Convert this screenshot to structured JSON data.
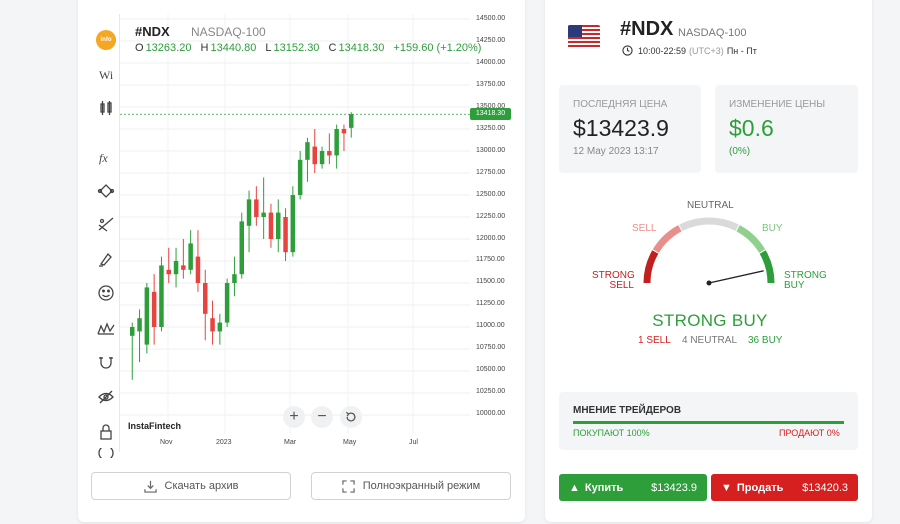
{
  "chart": {
    "symbol": "#NDX",
    "name": "NASDAQ-100",
    "ohlc": {
      "o_label": "O",
      "o": "13263.20",
      "h_label": "H",
      "h": "13440.80",
      "l_label": "L",
      "l": "13152.30",
      "c_label": "C",
      "c": "13418.30",
      "change": "+159.60 (+1.20%)"
    },
    "current_price_tag": "13418.30",
    "brand": "InstaFintech",
    "zoom_in": "+",
    "zoom_out": "−",
    "y_ticks": [
      "14500.00",
      "14250.00",
      "14000.00",
      "13750.00",
      "13500.00",
      "13250.00",
      "13000.00",
      "12750.00",
      "12500.00",
      "12250.00",
      "12000.00",
      "11750.00",
      "11500.00",
      "11250.00",
      "11000.00",
      "10750.00",
      "10500.00",
      "10250.00",
      "10000.00"
    ],
    "x_ticks": [
      "Nov",
      "2023",
      "Mar",
      "May",
      "Jul"
    ],
    "tools": [
      "logo",
      "wi-icon",
      "candles-icon",
      "fx-icon",
      "shape-icon",
      "trend-lines-icon",
      "brush-icon",
      "emoji-icon",
      "pattern-icon",
      "magnet-icon",
      "hide-icon",
      "lock-icon",
      "clock-icon"
    ],
    "logo_text": "info",
    "colors": {
      "up": "#2e9e3b",
      "down": "#e8433f"
    }
  },
  "chart_data": {
    "type": "candlestick",
    "title": "#NDX NASDAQ-100",
    "ylim": [
      10000,
      14500
    ],
    "candles": [
      {
        "o": 10900,
        "h": 11050,
        "l": 10400,
        "c": 11000
      },
      {
        "o": 10950,
        "h": 11200,
        "l": 10600,
        "c": 11100
      },
      {
        "o": 10800,
        "h": 11500,
        "l": 10700,
        "c": 11450
      },
      {
        "o": 11400,
        "h": 11600,
        "l": 10800,
        "c": 11000
      },
      {
        "o": 11000,
        "h": 11800,
        "l": 10950,
        "c": 11700
      },
      {
        "o": 11650,
        "h": 11900,
        "l": 11500,
        "c": 11600
      },
      {
        "o": 11600,
        "h": 11900,
        "l": 11450,
        "c": 11750
      },
      {
        "o": 11700,
        "h": 12000,
        "l": 11550,
        "c": 11650
      },
      {
        "o": 11650,
        "h": 12100,
        "l": 11600,
        "c": 11950
      },
      {
        "o": 11800,
        "h": 12100,
        "l": 11400,
        "c": 11500
      },
      {
        "o": 11500,
        "h": 11650,
        "l": 10850,
        "c": 11150
      },
      {
        "o": 11100,
        "h": 11300,
        "l": 10800,
        "c": 10950
      },
      {
        "o": 10950,
        "h": 11150,
        "l": 10800,
        "c": 11050
      },
      {
        "o": 11050,
        "h": 11550,
        "l": 11000,
        "c": 11500
      },
      {
        "o": 11500,
        "h": 11800,
        "l": 11350,
        "c": 11600
      },
      {
        "o": 11600,
        "h": 12300,
        "l": 11550,
        "c": 12200
      },
      {
        "o": 12150,
        "h": 12550,
        "l": 11850,
        "c": 12450
      },
      {
        "o": 12450,
        "h": 12600,
        "l": 12150,
        "c": 12250
      },
      {
        "o": 12250,
        "h": 12700,
        "l": 12000,
        "c": 12300
      },
      {
        "o": 12300,
        "h": 12400,
        "l": 11900,
        "c": 12000
      },
      {
        "o": 12000,
        "h": 12450,
        "l": 11850,
        "c": 12300
      },
      {
        "o": 12250,
        "h": 12350,
        "l": 11750,
        "c": 11850
      },
      {
        "o": 11850,
        "h": 12600,
        "l": 11800,
        "c": 12500
      },
      {
        "o": 12500,
        "h": 13000,
        "l": 12450,
        "c": 12900
      },
      {
        "o": 12900,
        "h": 13150,
        "l": 12650,
        "c": 13100
      },
      {
        "o": 13050,
        "h": 13250,
        "l": 12750,
        "c": 12850
      },
      {
        "o": 12850,
        "h": 13050,
        "l": 12800,
        "c": 13000
      },
      {
        "o": 13000,
        "h": 13200,
        "l": 12850,
        "c": 12950
      },
      {
        "o": 12950,
        "h": 13300,
        "l": 12800,
        "c": 13250
      },
      {
        "o": 13250,
        "h": 13300,
        "l": 13000,
        "c": 13200
      },
      {
        "o": 13263,
        "h": 13441,
        "l": 13152,
        "c": 13418
      }
    ]
  },
  "buttons": {
    "download": "Скачать архив",
    "fullscreen": "Полноэкранный режим"
  },
  "info": {
    "symbol": "#NDX",
    "name": "NASDAQ-100",
    "hours": "10:00-22:59",
    "tz": "(UTC+3)",
    "days": "Пн - Пт",
    "last_label": "ПОСЛЕДНЯЯ ЦЕНА",
    "last_value": "$13423.9",
    "last_date": "12 May 2023 13:17",
    "change_label": "ИЗМЕНЕНИЕ ЦЕНЫ",
    "change_value": "$0.6",
    "change_pct": "(0%)"
  },
  "gauge": {
    "neutral": "NEUTRAL",
    "sell": "SELL",
    "buy": "BUY",
    "strong_sell_1": "STRONG",
    "strong_sell_2": "SELL",
    "strong_buy_1": "STRONG",
    "strong_buy_2": "BUY",
    "verdict": "STRONG BUY",
    "sell_count": "1 SELL",
    "neutral_count": "4 NEUTRAL",
    "buy_count": "36 BUY",
    "needle_level": 0.93,
    "colors": {
      "strong_sell": "#c0211f",
      "sell": "#e88f8c",
      "neutral": "#dadada",
      "buy": "#8fd08f",
      "strong_buy": "#2e9e3b"
    }
  },
  "opinion": {
    "title": "МНЕНИЕ ТРЕЙДЕРОВ",
    "buy": "ПОКУПАЮТ 100%",
    "sell": "ПРОДАЮТ 0%",
    "buy_share": 1.0
  },
  "trade": {
    "buy_label": "Купить",
    "buy_price": "$13423.9",
    "sell_label": "Продать",
    "sell_price": "$13420.3",
    "buy_color": "#2e9e3b",
    "sell_color": "#d61f1f"
  }
}
